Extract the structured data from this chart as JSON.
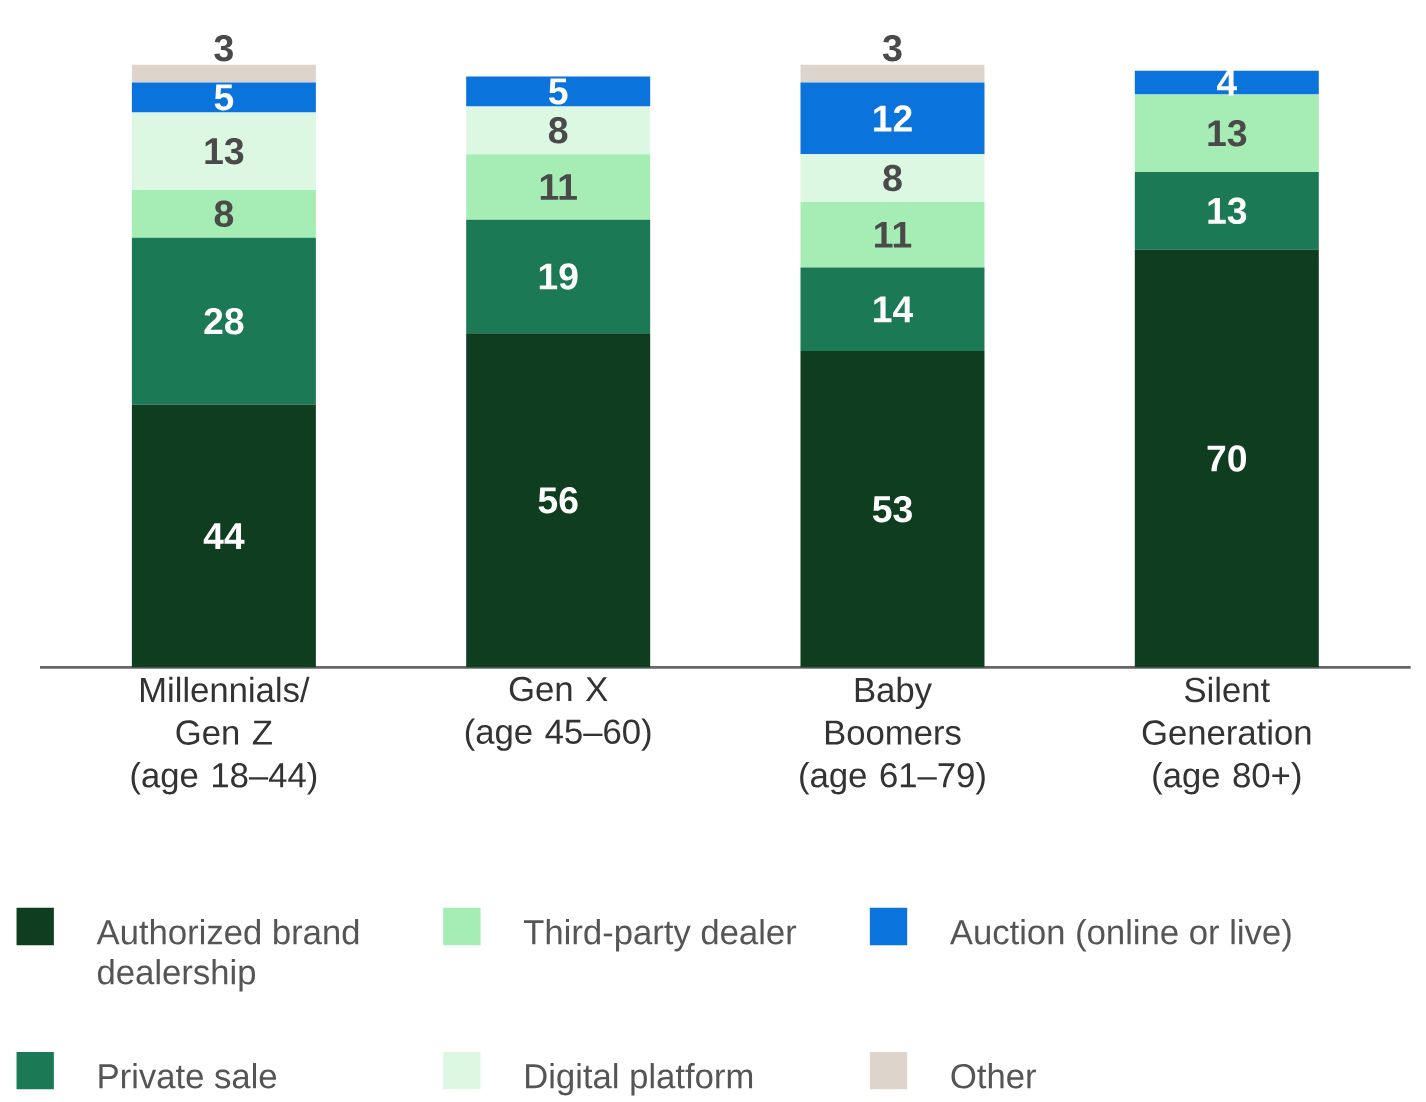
{
  "chart_data": {
    "type": "bar",
    "stacked": true,
    "data_labels": true,
    "legend": "bottom",
    "categories": [
      "Millennials/ Gen Z (age 18–44)",
      "Gen X (age 45–60)",
      "Baby Boomers (age 61–79)",
      "Silent Generation (age 80+)"
    ],
    "series": [
      {
        "name": "Authorized brand dealership",
        "color": "#0f3d1f",
        "values": [
          44,
          56,
          53,
          70
        ]
      },
      {
        "name": "Private sale",
        "color": "#1b7a55",
        "values": [
          28,
          19,
          14,
          13
        ]
      },
      {
        "name": "Third-party dealer",
        "color": "#a6ecb5",
        "values": [
          8,
          11,
          11,
          13
        ]
      },
      {
        "name": "Digital platform",
        "color": "#dcf8e3",
        "values": [
          13,
          8,
          8,
          null
        ]
      },
      {
        "name": "Auction (online or live)",
        "color": "#0b73dc",
        "values": [
          5,
          5,
          12,
          4
        ]
      },
      {
        "name": "Other",
        "color": "#ddd4cc",
        "values": [
          3,
          null,
          3,
          null
        ]
      }
    ]
  }
}
